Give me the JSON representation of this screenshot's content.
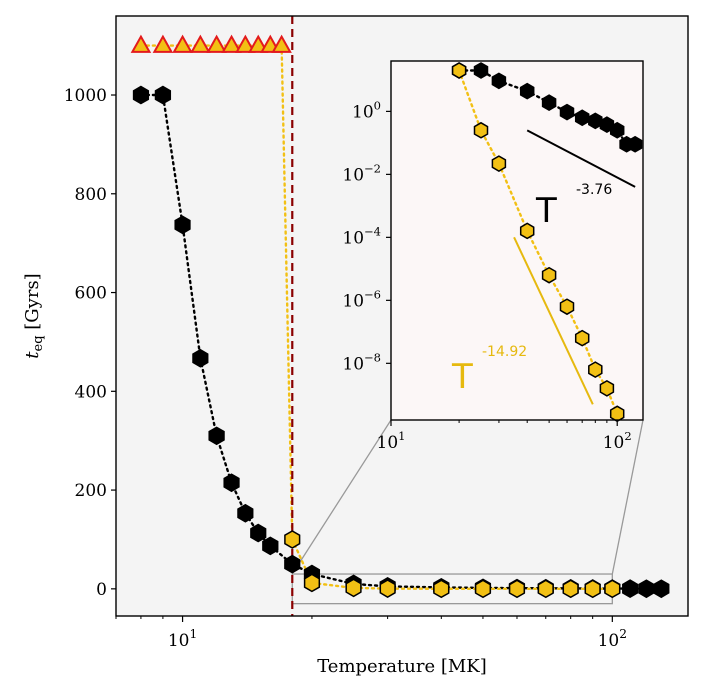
{
  "chart_data": [
    {
      "type": "scatter",
      "xlabel": "Temperature [MK]",
      "ylabel_main": "t",
      "ylabel_sub": "eq",
      "ylabel_unit": " [Gyrs]",
      "xscale": "log",
      "xlim": [
        7,
        150
      ],
      "ylim": [
        -55,
        1160
      ],
      "xticks": [
        {
          "value": 10,
          "base": "10",
          "exp": "1"
        },
        {
          "value": 100,
          "base": "10",
          "exp": "2"
        }
      ],
      "yticks": [
        {
          "value": 0,
          "label": "0"
        },
        {
          "value": 200,
          "label": "200"
        },
        {
          "value": 400,
          "label": "400"
        },
        {
          "value": 600,
          "label": "600"
        },
        {
          "value": 800,
          "label": "800"
        },
        {
          "value": 1000,
          "label": "1000"
        }
      ],
      "vline_x": 18,
      "vline_color": "#8b0000",
      "background": "#f4f4f4",
      "series": [
        {
          "marker": "hexagon",
          "color": "#000000",
          "edge": "#000000",
          "linestyle": "dotted",
          "x": [
            8,
            9,
            10,
            11,
            12,
            13,
            14,
            15,
            16,
            18,
            20,
            25,
            30,
            40,
            50,
            60,
            70,
            80,
            90,
            100,
            110,
            120,
            130
          ],
          "y": [
            1000,
            1000,
            737,
            467,
            310,
            215,
            153,
            113,
            87,
            50,
            30,
            10,
            5,
            3,
            2,
            1.5,
            1,
            0.8,
            0.6,
            0.5,
            0.4,
            0.3,
            0.3
          ]
        },
        {
          "marker": "hexagon",
          "color": "#f2c014",
          "edge": "#000000",
          "linestyle": "dotted",
          "x": [
            18,
            20,
            25,
            30,
            40,
            50,
            60,
            70,
            80,
            90,
            100
          ],
          "y": [
            100,
            12,
            2,
            0.5,
            0.02,
            0.005,
            0.002,
            0.0005,
            0.0001,
            5e-05,
            2e-05
          ]
        },
        {
          "marker": "triangle",
          "color": "#f2c014",
          "edge": "#e31a1c",
          "linestyle": "dotted",
          "x": [
            8,
            9,
            10,
            11,
            12,
            13,
            14,
            15,
            16,
            17
          ],
          "y": [
            1100,
            1100,
            1100,
            1100,
            1100,
            1100,
            1100,
            1100,
            1100,
            1100
          ]
        }
      ]
    },
    {
      "type": "scatter",
      "xscale": "log",
      "yscale": "log",
      "xlim": [
        10,
        130
      ],
      "ylim_log10": [
        -9.8,
        1.6
      ],
      "xticks": [
        {
          "value": 10,
          "base": "10",
          "exp": "1"
        },
        {
          "value": 100,
          "base": "10",
          "exp": "2"
        }
      ],
      "yticks": [
        {
          "value": 0,
          "base": "10",
          "exp": "0"
        },
        {
          "value": -2,
          "base": "10",
          "exp": "−2"
        },
        {
          "value": -4,
          "base": "10",
          "exp": "−4"
        },
        {
          "value": -6,
          "base": "10",
          "exp": "−6"
        },
        {
          "value": -8,
          "base": "10",
          "exp": "−8"
        }
      ],
      "background": "#fcf7f7",
      "series": [
        {
          "marker": "hexagon",
          "color": "#000000",
          "edge": "#000000",
          "linestyle": "dotted",
          "x": [
            20,
            25,
            30,
            40,
            50,
            60,
            70,
            80,
            90,
            100,
            110,
            120
          ],
          "y": [
            19.9,
            19.9,
            9.3,
            4.4,
            1.9,
            0.95,
            0.63,
            0.5,
            0.38,
            0.25,
            0.09,
            0.09
          ]
        },
        {
          "marker": "hexagon",
          "color": "#f2c014",
          "edge": "#000000",
          "linestyle": "dotted",
          "x": [
            20,
            25,
            30,
            40,
            50,
            60,
            70,
            80,
            90,
            100
          ],
          "y": [
            19.9,
            0.25,
            0.022,
            0.00016,
            6.3e-06,
            6.3e-07,
            6.3e-08,
            6.3e-09,
            1.6e-09,
            2.5e-10
          ]
        }
      ],
      "annotations": [
        {
          "text": "T",
          "exp": "-3.76",
          "color": "#000000"
        },
        {
          "text": "T",
          "exp": "-14.92",
          "color": "#e6b90f"
        }
      ]
    }
  ]
}
